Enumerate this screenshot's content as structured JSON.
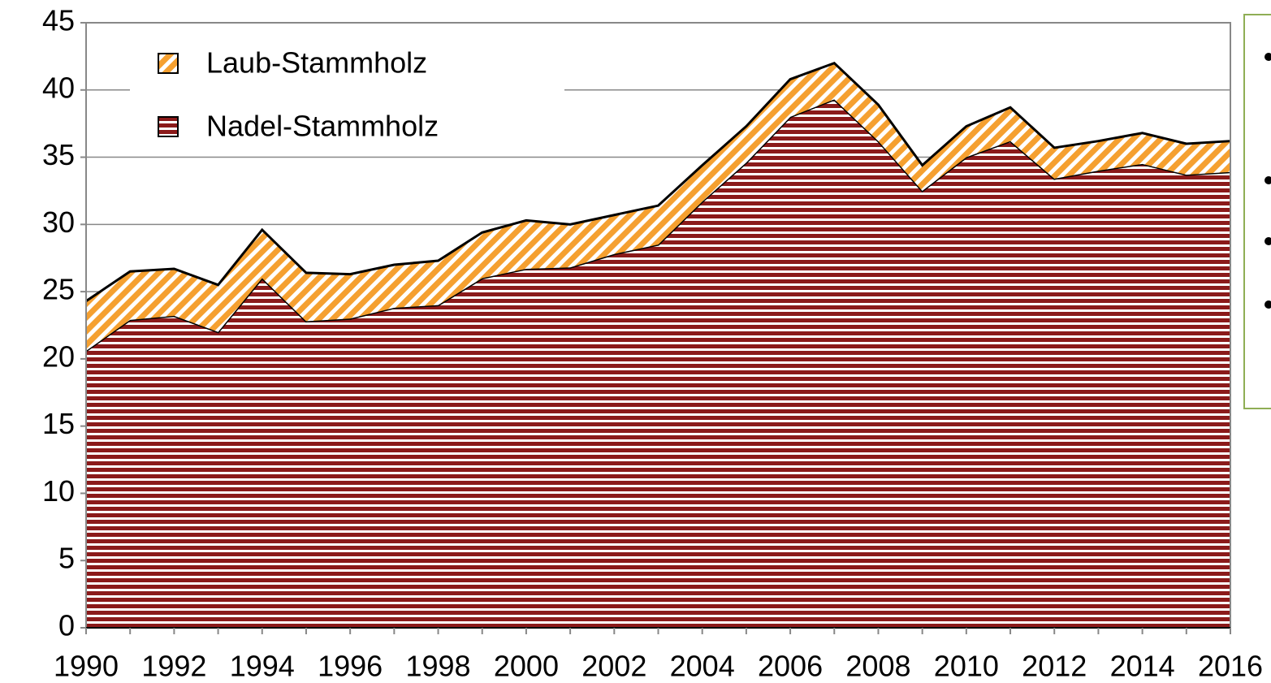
{
  "chart_data": {
    "type": "stacked_area",
    "x": [
      1990,
      1991,
      1992,
      1993,
      1994,
      1995,
      1996,
      1997,
      1998,
      1999,
      2000,
      2001,
      2002,
      2003,
      2004,
      2005,
      2006,
      2007,
      2008,
      2009,
      2010,
      2011,
      2012,
      2013,
      2014,
      2015,
      2016
    ],
    "series": [
      {
        "name": "Nadel-Stammholz",
        "color": "#8b1a1a",
        "values": [
          20.6,
          22.9,
          23.2,
          22.0,
          26.0,
          22.8,
          23.0,
          23.8,
          24.0,
          26.0,
          26.7,
          26.8,
          27.8,
          28.5,
          31.7,
          34.6,
          38.0,
          39.3,
          36.2,
          32.5,
          35.0,
          36.2,
          33.4,
          34.0,
          34.5,
          33.7,
          33.9
        ]
      },
      {
        "name": "Laub-Stammholz",
        "color": "#f5a030",
        "values": [
          3.7,
          3.6,
          3.5,
          3.5,
          3.6,
          3.6,
          3.3,
          3.2,
          3.3,
          3.4,
          3.6,
          3.2,
          2.9,
          2.9,
          2.7,
          2.7,
          2.8,
          2.7,
          2.7,
          1.9,
          2.3,
          2.5,
          2.3,
          2.2,
          2.3,
          2.3,
          2.3
        ]
      }
    ],
    "xlim": [
      1990,
      2016
    ],
    "xticks": [
      1990,
      1992,
      1994,
      1996,
      1998,
      2000,
      2002,
      2004,
      2006,
      2008,
      2010,
      2012,
      2014,
      2016
    ],
    "ylim": [
      0,
      45
    ],
    "yticks": [
      0,
      5,
      10,
      15,
      20,
      25,
      30,
      35,
      40,
      45
    ],
    "grid": true,
    "legend": "upper left"
  }
}
